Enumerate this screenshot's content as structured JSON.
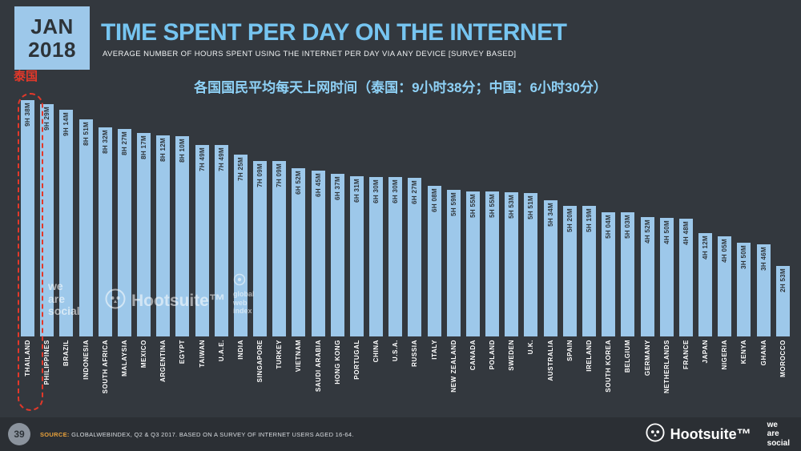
{
  "header": {
    "date_line1": "JAN",
    "date_line2": "2018",
    "title": "TIME SPENT PER DAY ON THE INTERNET",
    "subtitle": "AVERAGE NUMBER OF HOURS SPENT USING THE INTERNET PER DAY VIA ANY DEVICE [SURVEY BASED]"
  },
  "annotations": {
    "chinese_subtitle": "各国国民平均每天上网时间（泰国：9小时38分；中国：6小时30分）",
    "thailand_label": "泰国"
  },
  "chart_data": {
    "type": "bar",
    "title": "TIME SPENT PER DAY ON THE INTERNET",
    "value_unit": "hours and minutes per day",
    "ylim_minutes": [
      0,
      578
    ],
    "legend": "none",
    "bars": [
      {
        "country": "THAILAND",
        "label": "9H 38M",
        "minutes": 578
      },
      {
        "country": "PHILIPPINES",
        "label": "9H 29M",
        "minutes": 569
      },
      {
        "country": "BRAZIL",
        "label": "9H 14M",
        "minutes": 554
      },
      {
        "country": "INDONESIA",
        "label": "8H 51M",
        "minutes": 531
      },
      {
        "country": "SOUTH AFRICA",
        "label": "8H 32M",
        "minutes": 512
      },
      {
        "country": "MALAYSIA",
        "label": "8H 27M",
        "minutes": 507
      },
      {
        "country": "MEXICO",
        "label": "8H 17M",
        "minutes": 497
      },
      {
        "country": "ARGENTINA",
        "label": "8H 12M",
        "minutes": 492
      },
      {
        "country": "EGYPT",
        "label": "8H 10M",
        "minutes": 490
      },
      {
        "country": "TAIWAN",
        "label": "7H 49M",
        "minutes": 469
      },
      {
        "country": "U.A.E.",
        "label": "7H 49M",
        "minutes": 469
      },
      {
        "country": "INDIA",
        "label": "7H 25M",
        "minutes": 445
      },
      {
        "country": "SINGAPORE",
        "label": "7H 09M",
        "minutes": 429
      },
      {
        "country": "TURKEY",
        "label": "7H 09M",
        "minutes": 429
      },
      {
        "country": "VIETNAM",
        "label": "6H 52M",
        "minutes": 412
      },
      {
        "country": "SAUDI ARABIA",
        "label": "6H 45M",
        "minutes": 405
      },
      {
        "country": "HONG KONG",
        "label": "6H 37M",
        "minutes": 397
      },
      {
        "country": "PORTUGAL",
        "label": "6H 31M",
        "minutes": 391
      },
      {
        "country": "CHINA",
        "label": "6H 30M",
        "minutes": 390
      },
      {
        "country": "U.S.A.",
        "label": "6H 30M",
        "minutes": 390
      },
      {
        "country": "RUSSIA",
        "label": "6H 27M",
        "minutes": 387
      },
      {
        "country": "ITALY",
        "label": "6H 08M",
        "minutes": 368
      },
      {
        "country": "NEW ZEALAND",
        "label": "5H 59M",
        "minutes": 359
      },
      {
        "country": "CANADA",
        "label": "5H 55M",
        "minutes": 355
      },
      {
        "country": "POLAND",
        "label": "5H 55M",
        "minutes": 355
      },
      {
        "country": "SWEDEN",
        "label": "5H 53M",
        "minutes": 353
      },
      {
        "country": "U.K.",
        "label": "5H 51M",
        "minutes": 351
      },
      {
        "country": "AUSTRALIA",
        "label": "5H 34M",
        "minutes": 334
      },
      {
        "country": "SPAIN",
        "label": "5H 20M",
        "minutes": 320
      },
      {
        "country": "IRELAND",
        "label": "5H 19M",
        "minutes": 319
      },
      {
        "country": "SOUTH KOREA",
        "label": "5H 04M",
        "minutes": 304
      },
      {
        "country": "BELGIUM",
        "label": "5H 03M",
        "minutes": 303
      },
      {
        "country": "GERMANY",
        "label": "4H 52M",
        "minutes": 292
      },
      {
        "country": "NETHERLANDS",
        "label": "4H 50M",
        "minutes": 290
      },
      {
        "country": "FRANCE",
        "label": "4H 48M",
        "minutes": 288
      },
      {
        "country": "JAPAN",
        "label": "4H 12M",
        "minutes": 252
      },
      {
        "country": "NIGERIA",
        "label": "4H 05M",
        "minutes": 245
      },
      {
        "country": "KENYA",
        "label": "3H 50M",
        "minutes": 230
      },
      {
        "country": "GHANA",
        "label": "3H 46M",
        "minutes": 226
      },
      {
        "country": "MOROCCO",
        "label": "2H 53M",
        "minutes": 173
      }
    ]
  },
  "watermarks": {
    "wearesocial": [
      "we",
      "are",
      "social"
    ],
    "hootsuite": "Hootsuite™",
    "gwi": [
      "global",
      "web",
      "index"
    ]
  },
  "footer": {
    "page": "39",
    "source_label": "SOURCE:",
    "source_text": "GLOBALWEBINDEX, Q2 & Q3 2017. BASED ON A SURVEY OF INTERNET USERS AGED 16-64.",
    "hootsuite": "Hootsuite™",
    "wearesocial": [
      "we",
      "are",
      "social"
    ]
  },
  "colors": {
    "background": "#33383e",
    "footer_bg": "#2b2f34",
    "bar": "#9dc8ea",
    "title_blue": "#76c5f1",
    "chinese_blue": "#8ed1f6",
    "red": "#e2382a",
    "source_orange": "#e9a23b",
    "text_dark": "#2d3338"
  }
}
